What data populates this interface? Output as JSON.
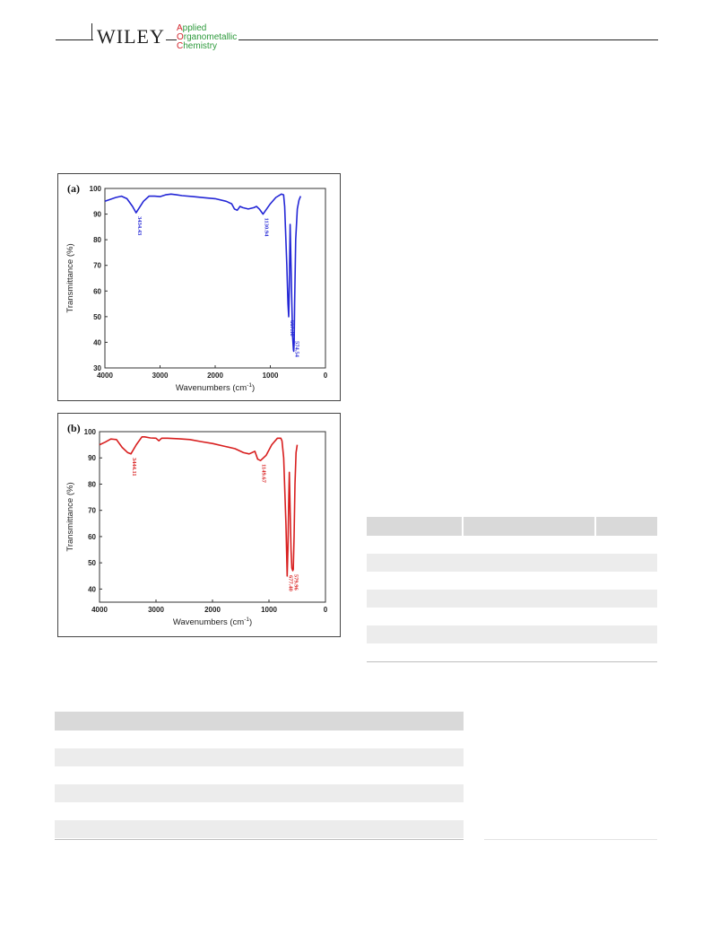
{
  "header": {
    "publisher": "WILEY",
    "journal_lines": [
      {
        "cap": "A",
        "rest": "pplied"
      },
      {
        "cap": "O",
        "rest": "rganometallic"
      },
      {
        "cap": "C",
        "rest": "hemistry"
      }
    ]
  },
  "chart_data": [
    {
      "type": "line",
      "panel_label": "(a)",
      "xlabel": "Wavenumbers (cm",
      "xlabel_sup": "-1",
      "xlabel_end": ")",
      "ylabel": "Transmittance (%)",
      "xlim": [
        4000,
        0
      ],
      "ylim": [
        30,
        100
      ],
      "xticks": [
        4000,
        3000,
        2000,
        1000,
        0
      ],
      "yticks": [
        30,
        40,
        50,
        60,
        70,
        80,
        90,
        100
      ],
      "color": "#2326d6",
      "series": [
        {
          "x": [
            4000,
            3800,
            3700,
            3600,
            3500,
            3434,
            3300,
            3200,
            3100,
            3000,
            2900,
            2800,
            2700,
            2600,
            2400,
            2200,
            2000,
            1800,
            1700,
            1650,
            1600,
            1550,
            1500,
            1400,
            1300,
            1250,
            1200,
            1131,
            1000,
            900,
            800,
            760,
            740,
            700,
            680,
            667,
            655,
            640,
            625,
            610,
            595,
            580,
            575,
            568,
            560,
            540,
            510,
            480,
            450
          ],
          "y": [
            95,
            96.5,
            97,
            96,
            93,
            90.5,
            95,
            97,
            97,
            96.8,
            97.5,
            97.8,
            97.5,
            97.2,
            96.8,
            96.4,
            96,
            95,
            94,
            92,
            91.5,
            93,
            92.5,
            92,
            92.5,
            93,
            92,
            90,
            94,
            96.5,
            97.8,
            97.5,
            93,
            70,
            55,
            50,
            62,
            86,
            70,
            55,
            42,
            37,
            36.5,
            40,
            55,
            80,
            92,
            95.5,
            97
          ]
        }
      ],
      "peaks": [
        {
          "x": 3434,
          "label": "3434.43"
        },
        {
          "x": 1131,
          "label": "1130.94"
        },
        {
          "x": 667,
          "label": "667.30"
        },
        {
          "x": 575,
          "label": "574.54"
        }
      ]
    },
    {
      "type": "line",
      "panel_label": "(b)",
      "xlabel": "Wavenumbers (cm",
      "xlabel_sup": "-1",
      "xlabel_end": ")",
      "ylabel": "Transmittance (%)",
      "xlim": [
        4000,
        0
      ],
      "ylim": [
        35,
        100
      ],
      "xticks": [
        4000,
        3000,
        2000,
        1000,
        0
      ],
      "yticks": [
        40,
        50,
        60,
        70,
        80,
        90,
        100
      ],
      "color": "#d81e1e",
      "series": [
        {
          "x": [
            4000,
            3900,
            3800,
            3700,
            3600,
            3500,
            3444,
            3350,
            3250,
            3200,
            3100,
            3000,
            2950,
            2900,
            2800,
            2600,
            2400,
            2200,
            2000,
            1800,
            1600,
            1450,
            1350,
            1250,
            1200,
            1149,
            1050,
            950,
            850,
            790,
            770,
            740,
            700,
            677,
            665,
            650,
            640,
            625,
            610,
            595,
            580,
            570,
            555,
            540,
            520,
            500
          ],
          "y": [
            95,
            96,
            97.2,
            97,
            94,
            92,
            91.5,
            95,
            98,
            98,
            97.6,
            97.5,
            96.5,
            97.5,
            97.5,
            97.3,
            97,
            96.2,
            95.5,
            94.5,
            93.5,
            92,
            91.5,
            92.5,
            89.5,
            89,
            91,
            95,
            97.5,
            97.5,
            96.5,
            90,
            65,
            45,
            55,
            75,
            84.5,
            70,
            55,
            48,
            47,
            47.5,
            60,
            80,
            92,
            95
          ]
        }
      ],
      "peaks": [
        {
          "x": 3444,
          "label": "3444.11"
        },
        {
          "x": 1149,
          "label": "1149.67"
        },
        {
          "x": 677,
          "label": "677.40"
        },
        {
          "x": 580,
          "label": "579.96"
        }
      ]
    }
  ],
  "table_right": {
    "rows": 8
  },
  "table_bottom": {
    "rows": 8
  }
}
